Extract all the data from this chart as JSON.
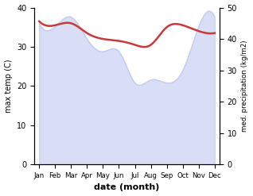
{
  "months": [
    "Jan",
    "Feb",
    "Mar",
    "Apr",
    "May",
    "Jun",
    "Jul",
    "Aug",
    "Sep",
    "Oct",
    "Nov",
    "Dec"
  ],
  "month_indices": [
    0,
    1,
    2,
    3,
    4,
    5,
    6,
    7,
    8,
    9,
    10,
    11
  ],
  "max_temp": [
    36.5,
    35.5,
    36.0,
    33.5,
    32.0,
    31.5,
    30.5,
    30.5,
    35.0,
    35.5,
    34.0,
    33.5
  ],
  "precipitation": [
    45,
    44,
    47,
    40,
    36,
    36,
    26,
    27,
    26,
    30,
    44,
    47
  ],
  "temp_color": "#c83a3a",
  "precip_fill_color": "#b8c4ee",
  "temp_ylim": [
    0,
    40
  ],
  "precip_ylim": [
    0,
    50
  ],
  "left_ticks": [
    0,
    10,
    20,
    30,
    40
  ],
  "right_ticks": [
    0,
    10,
    20,
    30,
    40,
    50
  ],
  "xlabel": "date (month)",
  "ylabel_left": "max temp (C)",
  "ylabel_right": "med. precipitation (kg/m2)",
  "temp_linewidth": 1.8,
  "scale_factor": 0.8
}
